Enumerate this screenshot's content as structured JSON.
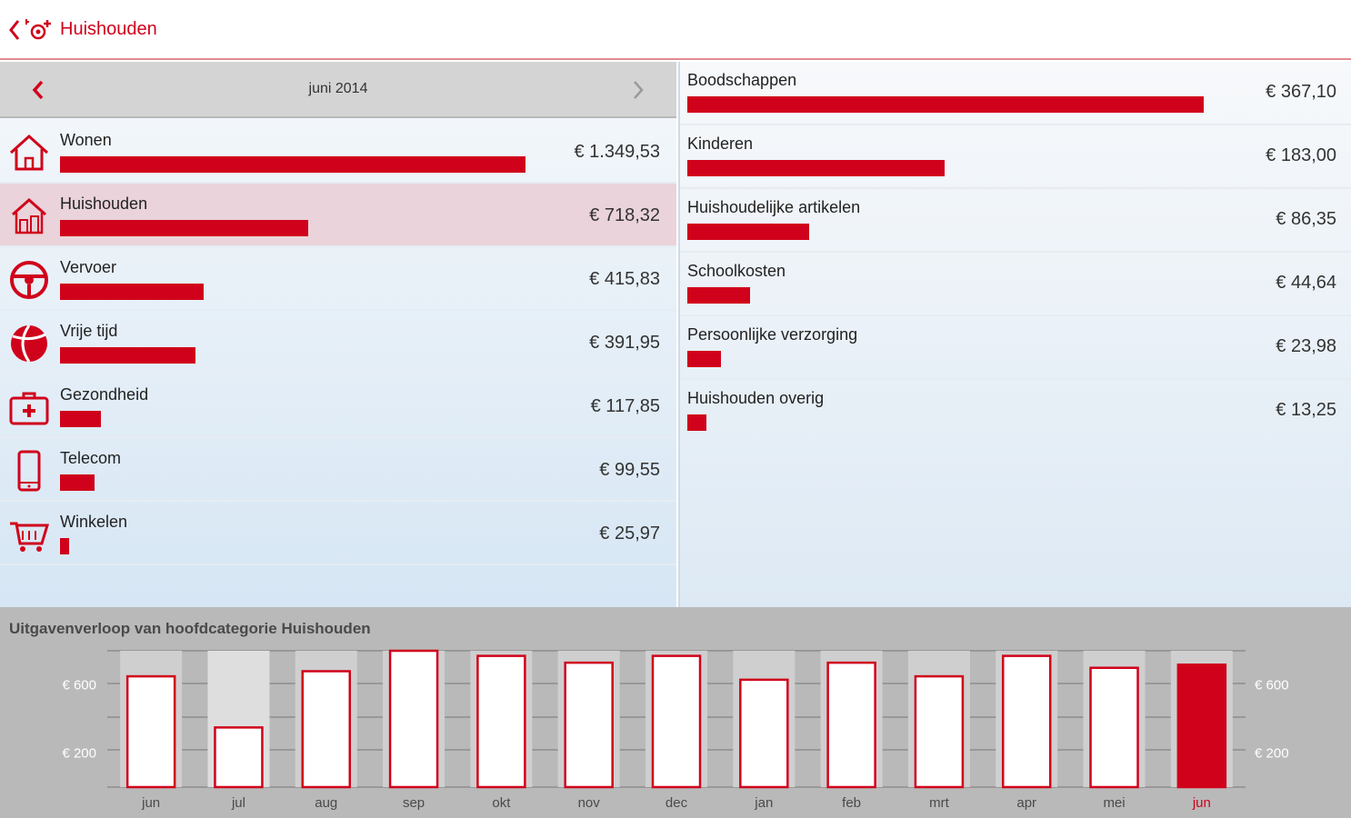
{
  "header": {
    "title": "Huishouden",
    "accent_color": "#d0021b"
  },
  "month_nav": {
    "label": "juni 2014"
  },
  "categories": [
    {
      "name": "Wonen",
      "amount": "€ 1.349,53",
      "value": 1349.53,
      "icon": "house-icon",
      "selected": false
    },
    {
      "name": "Huishouden",
      "amount": "€ 718,32",
      "value": 718.32,
      "icon": "household-icon",
      "selected": true
    },
    {
      "name": "Vervoer",
      "amount": "€ 415,83",
      "value": 415.83,
      "icon": "steering-wheel-icon",
      "selected": false
    },
    {
      "name": "Vrije tijd",
      "amount": "€ 391,95",
      "value": 391.95,
      "icon": "beach-ball-icon",
      "selected": false
    },
    {
      "name": "Gezondheid",
      "amount": "€ 117,85",
      "value": 117.85,
      "icon": "first-aid-kit-icon",
      "selected": false
    },
    {
      "name": "Telecom",
      "amount": "€ 99,55",
      "value": 99.55,
      "icon": "phone-icon",
      "selected": false
    },
    {
      "name": "Winkelen",
      "amount": "€ 25,97",
      "value": 25.97,
      "icon": "shopping-cart-icon",
      "selected": false
    }
  ],
  "subcategories": [
    {
      "name": "Boodschappen",
      "amount": "€ 367,10",
      "value": 367.1
    },
    {
      "name": "Kinderen",
      "amount": "€ 183,00",
      "value": 183.0
    },
    {
      "name": "Huishoudelijke artikelen",
      "amount": "€ 86,35",
      "value": 86.35
    },
    {
      "name": "Schoolkosten",
      "amount": "€ 44,64",
      "value": 44.64
    },
    {
      "name": "Persoonlijke verzorging",
      "amount": "€ 23,98",
      "value": 23.98
    },
    {
      "name": "Huishouden overig",
      "amount": "€ 13,25",
      "value": 13.25
    }
  ],
  "chart_data": {
    "type": "bar",
    "title": "Uitgavenverloop van hoofdcategorie Huishouden",
    "categories": [
      "jun",
      "jul",
      "aug",
      "sep",
      "okt",
      "nov",
      "dec",
      "jan",
      "feb",
      "mrt",
      "apr",
      "mei",
      "jun"
    ],
    "values": [
      650,
      350,
      680,
      800,
      770,
      730,
      770,
      630,
      730,
      650,
      770,
      700,
      718.32
    ],
    "highlight_index": 12,
    "ytick_labels": [
      "€ 600",
      "€ 200"
    ],
    "ytick_values": [
      600,
      200
    ],
    "ylim": [
      0,
      800
    ],
    "xlabel": "",
    "ylabel": "",
    "colors": {
      "bar_fill": "#ffffff",
      "bar_stroke": "#d0021b",
      "highlight": "#d0021b",
      "background": "#b9b9b9"
    }
  }
}
